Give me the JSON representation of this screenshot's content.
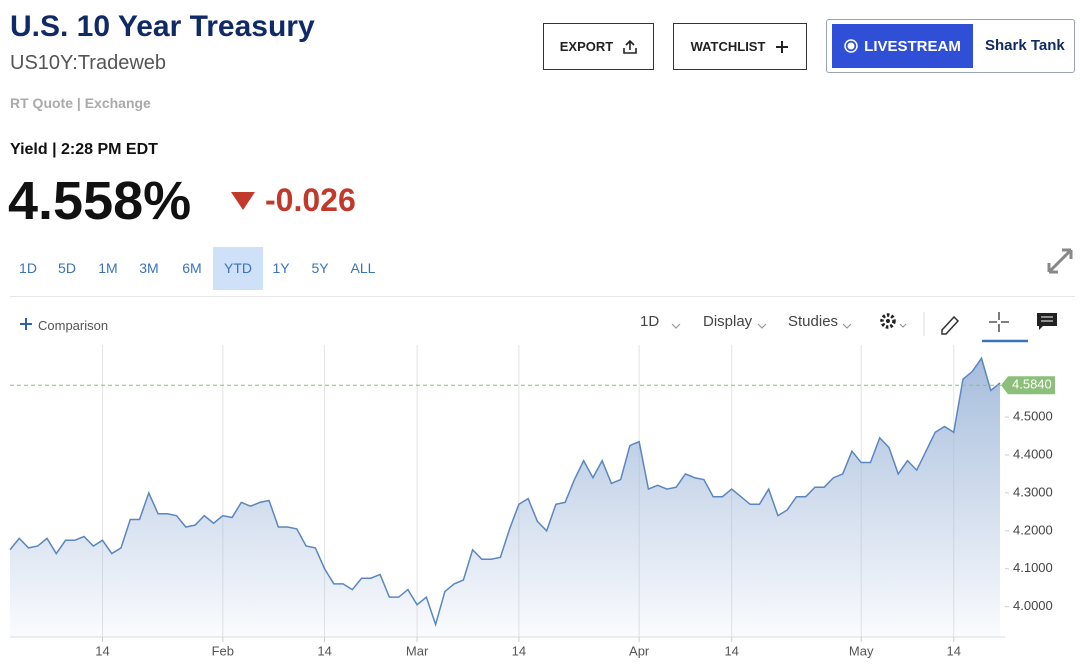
{
  "header": {
    "title": "U.S. 10 Year Treasury",
    "symbol": "US10Y:Tradeweb",
    "quote_source": "RT Quote | Exchange"
  },
  "quote": {
    "label": "Yield | 2:28 PM EDT",
    "price": "4.558%",
    "change": "-0.026"
  },
  "buttons": {
    "export": "EXPORT",
    "watchlist": "WATCHLIST",
    "livestream": "LIVESTREAM",
    "show": "Shark Tank"
  },
  "ranges": [
    "1D",
    "5D",
    "1M",
    "3M",
    "6M",
    "YTD",
    "1Y",
    "5Y",
    "ALL"
  ],
  "selected_range": "YTD",
  "toolbar": {
    "comparison": "Comparison",
    "interval": "1D",
    "display": "Display",
    "studies": "Studies"
  },
  "chart_data": {
    "type": "line",
    "color": "#5b86bf",
    "area": true,
    "grid": "x",
    "categories": [
      null,
      null,
      null,
      null,
      null,
      null,
      null,
      null,
      null,
      null,
      "14",
      null,
      null,
      null,
      null,
      null,
      null,
      null,
      null,
      null,
      null,
      null,
      null,
      "Feb",
      null,
      null,
      null,
      null,
      null,
      null,
      null,
      null,
      null,
      null,
      "14",
      null,
      null,
      null,
      null,
      null,
      null,
      null,
      null,
      null,
      "Mar",
      null,
      null,
      null,
      null,
      null,
      null,
      null,
      null,
      null,
      null,
      "14",
      null,
      null,
      null,
      null,
      null,
      null,
      null,
      null,
      null,
      null,
      null,
      null,
      "Apr",
      null,
      null,
      null,
      null,
      null,
      null,
      null,
      null,
      null,
      "14",
      null,
      null,
      null,
      null,
      null,
      null,
      null,
      null,
      null,
      null,
      null,
      null,
      null,
      "May",
      null,
      null,
      null,
      null,
      null,
      null,
      null,
      null,
      null,
      "14",
      null,
      null,
      null,
      null,
      null
    ],
    "values": [
      4.15,
      4.18,
      4.155,
      4.16,
      4.18,
      4.14,
      4.175,
      4.175,
      4.185,
      4.16,
      4.175,
      4.14,
      4.155,
      4.23,
      4.23,
      4.3,
      4.245,
      4.245,
      4.24,
      4.21,
      4.215,
      4.24,
      4.22,
      4.24,
      4.235,
      4.275,
      4.265,
      4.275,
      4.28,
      4.21,
      4.21,
      4.205,
      4.16,
      4.155,
      4.1,
      4.06,
      4.06,
      4.045,
      4.075,
      4.075,
      4.085,
      4.025,
      4.025,
      4.045,
      4.005,
      4.025,
      3.953,
      4.04,
      4.06,
      4.07,
      4.15,
      4.125,
      4.125,
      4.13,
      4.205,
      4.27,
      4.285,
      4.225,
      4.2,
      4.27,
      4.275,
      4.335,
      4.385,
      4.34,
      4.385,
      4.325,
      4.335,
      4.425,
      4.435,
      4.31,
      4.32,
      4.31,
      4.315,
      4.35,
      4.34,
      4.335,
      4.29,
      4.29,
      4.31,
      4.29,
      4.27,
      4.27,
      4.31,
      4.24,
      4.255,
      4.29,
      4.29,
      4.315,
      4.315,
      4.34,
      4.35,
      4.41,
      4.38,
      4.38,
      4.445,
      4.42,
      4.35,
      4.385,
      4.36,
      4.41,
      4.46,
      4.475,
      4.46,
      4.6,
      4.62,
      4.655,
      4.57,
      4.59
    ],
    "ylim": [
      3.92,
      4.69
    ],
    "yticks": [
      {
        "value": 4.0,
        "label": "4.0000"
      },
      {
        "value": 4.1,
        "label": "4.1000"
      },
      {
        "value": 4.2,
        "label": "4.2000"
      },
      {
        "value": 4.3,
        "label": "4.3000"
      },
      {
        "value": 4.4,
        "label": "4.4000"
      },
      {
        "value": 4.5,
        "label": "4.5000"
      }
    ],
    "reference_line": {
      "value": 4.584,
      "label": "4.5840",
      "color": "#8cc07a"
    }
  }
}
